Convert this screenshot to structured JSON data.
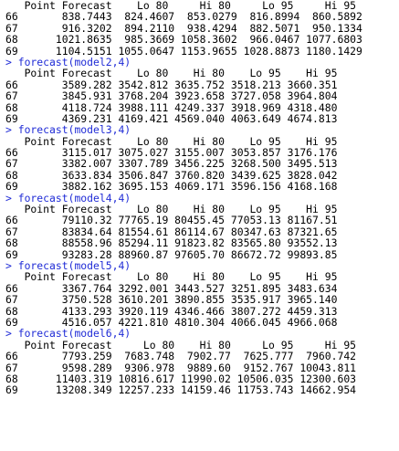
{
  "console": {
    "lines": [
      {
        "type": "out",
        "text": "   Point Forecast    Lo 80     Hi 80     Lo 95     Hi 95"
      },
      {
        "type": "out",
        "text": "66       838.7443  824.4607  853.0279  816.8994  860.5892"
      },
      {
        "type": "out",
        "text": "67       916.3202  894.2110  938.4294  882.5071  950.1334"
      },
      {
        "type": "out",
        "text": "68      1021.8635  985.3669 1058.3602  966.0467 1077.6803"
      },
      {
        "type": "out",
        "text": "69      1104.5151 1055.0647 1153.9655 1028.8873 1180.1429"
      },
      {
        "type": "cmd",
        "prompt": "> ",
        "text": "forecast(model2,4)"
      },
      {
        "type": "out",
        "text": "   Point Forecast    Lo 80    Hi 80    Lo 95    Hi 95"
      },
      {
        "type": "out",
        "text": "66       3589.282 3542.812 3635.752 3518.213 3660.351"
      },
      {
        "type": "out",
        "text": "67       3845.931 3768.204 3923.658 3727.058 3964.804"
      },
      {
        "type": "out",
        "text": "68       4118.724 3988.111 4249.337 3918.969 4318.480"
      },
      {
        "type": "out",
        "text": "69       4369.231 4169.421 4569.040 4063.649 4674.813"
      },
      {
        "type": "cmd",
        "prompt": "> ",
        "text": "forecast(model3,4)"
      },
      {
        "type": "out",
        "text": "   Point Forecast    Lo 80    Hi 80    Lo 95    Hi 95"
      },
      {
        "type": "out",
        "text": "66       3115.017 3075.027 3155.007 3053.857 3176.176"
      },
      {
        "type": "out",
        "text": "67       3382.007 3307.789 3456.225 3268.500 3495.513"
      },
      {
        "type": "out",
        "text": "68       3633.834 3506.847 3760.820 3439.625 3828.042"
      },
      {
        "type": "out",
        "text": "69       3882.162 3695.153 4069.171 3596.156 4168.168"
      },
      {
        "type": "cmd",
        "prompt": "> ",
        "text": "forecast(model4,4)"
      },
      {
        "type": "out",
        "text": "   Point Forecast    Lo 80    Hi 80    Lo 95    Hi 95"
      },
      {
        "type": "out",
        "text": "66       79110.32 77765.19 80455.45 77053.13 81167.51"
      },
      {
        "type": "out",
        "text": "67       83834.64 81554.61 86114.67 80347.63 87321.65"
      },
      {
        "type": "out",
        "text": "68       88558.96 85294.11 91823.82 83565.80 93552.13"
      },
      {
        "type": "out",
        "text": "69       93283.28 88960.87 97605.70 86672.72 99893.85"
      },
      {
        "type": "cmd",
        "prompt": "> ",
        "text": "forecast(model5,4)"
      },
      {
        "type": "out",
        "text": "   Point Forecast    Lo 80    Hi 80    Lo 95    Hi 95"
      },
      {
        "type": "out",
        "text": "66       3367.764 3292.001 3443.527 3251.895 3483.634"
      },
      {
        "type": "out",
        "text": "67       3750.528 3610.201 3890.855 3535.917 3965.140"
      },
      {
        "type": "out",
        "text": "68       4133.293 3920.119 4346.466 3807.272 4459.313"
      },
      {
        "type": "out",
        "text": "69       4516.057 4221.810 4810.304 4066.045 4966.068"
      },
      {
        "type": "cmd",
        "prompt": "> ",
        "text": "forecast(model6,4)"
      },
      {
        "type": "out",
        "text": "   Point Forecast     Lo 80    Hi 80     Lo 95     Hi 95"
      },
      {
        "type": "out",
        "text": "66       7793.259  7683.748  7902.77  7625.777  7960.742"
      },
      {
        "type": "out",
        "text": "67       9598.289  9306.978  9889.60  9152.767 10043.811"
      },
      {
        "type": "out",
        "text": "68      11403.319 10816.617 11990.02 10506.035 12300.603"
      },
      {
        "type": "out",
        "text": "69      13208.349 12257.233 14159.46 11753.743 14662.954"
      }
    ]
  },
  "colors": {
    "command": "#1f2bd6",
    "output": "#000000",
    "background": "#ffffff"
  }
}
